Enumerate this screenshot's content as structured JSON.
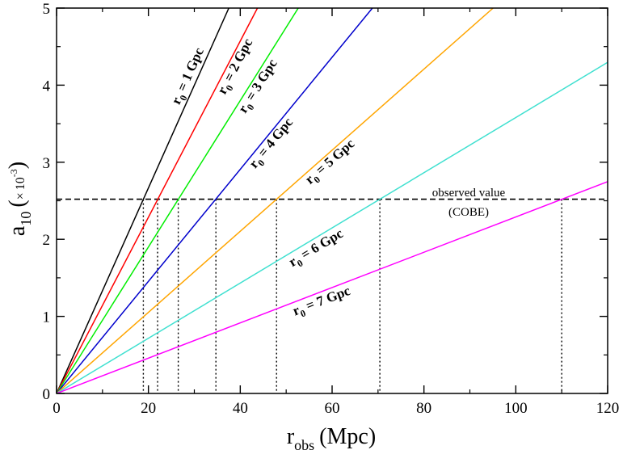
{
  "chart_data": {
    "type": "line",
    "title": "",
    "xlabel": {
      "main": "r",
      "sub": "obs",
      "unit": "(Mpc)"
    },
    "ylabel": {
      "main": "a",
      "sub": "10",
      "scale_open": "(",
      "scale_times": "×",
      "scale_base": "10",
      "scale_exp": "-3",
      "scale_close": ")"
    },
    "xlim": [
      0,
      120
    ],
    "ylim": [
      0,
      5
    ],
    "xticks": [
      0,
      20,
      40,
      60,
      80,
      100,
      120
    ],
    "yticks": [
      0,
      1,
      2,
      3,
      4,
      5
    ],
    "xtick_labels": [
      "0",
      "20",
      "40",
      "60",
      "80",
      "100",
      "120"
    ],
    "ytick_labels": [
      "0",
      "1",
      "2",
      "3",
      "4",
      "5"
    ],
    "grid": false,
    "legend": "inline labels along lines",
    "observed": {
      "value": 2.52,
      "label_line1": "observed value",
      "label_line2": "(COBE)",
      "style": "dashed",
      "color": "#000000"
    },
    "series": [
      {
        "name": "r0 = 1 Gpc",
        "label_main": "r",
        "label_sub": "0",
        "label_rest": " = 1 Gpc",
        "color": "#000000",
        "slope": 0.1333,
        "crossing_x": 18.9
      },
      {
        "name": "r0 = 2 Gpc",
        "label_main": "r",
        "label_sub": "0",
        "label_rest": " = 2 Gpc",
        "color": "#ff0000",
        "slope": 0.1143,
        "crossing_x": 22.0
      },
      {
        "name": "r0 = 3 Gpc",
        "label_main": "r",
        "label_sub": "0",
        "label_rest": " = 3 Gpc",
        "color": "#00ee00",
        "slope": 0.095,
        "crossing_x": 26.5
      },
      {
        "name": "r0 = 4 Gpc",
        "label_main": "r",
        "label_sub": "0",
        "label_rest": " = 4 Gpc",
        "color": "#0000cc",
        "slope": 0.0727,
        "crossing_x": 34.7
      },
      {
        "name": "r0 = 5 Gpc",
        "label_main": "r",
        "label_sub": "0",
        "label_rest": " = 5 Gpc",
        "color": "#ffa500",
        "slope": 0.0526,
        "crossing_x": 47.9
      },
      {
        "name": "r0 = 6 Gpc",
        "label_main": "r",
        "label_sub": "0",
        "label_rest": " = 6 Gpc",
        "color": "#40e0d0",
        "slope": 0.0358,
        "crossing_x": 70.4
      },
      {
        "name": "r0 = 7 Gpc",
        "label_main": "r",
        "label_sub": "0",
        "label_rest": " = 7 Gpc",
        "color": "#ff00ff",
        "slope": 0.0229,
        "crossing_x": 110.0
      }
    ]
  }
}
